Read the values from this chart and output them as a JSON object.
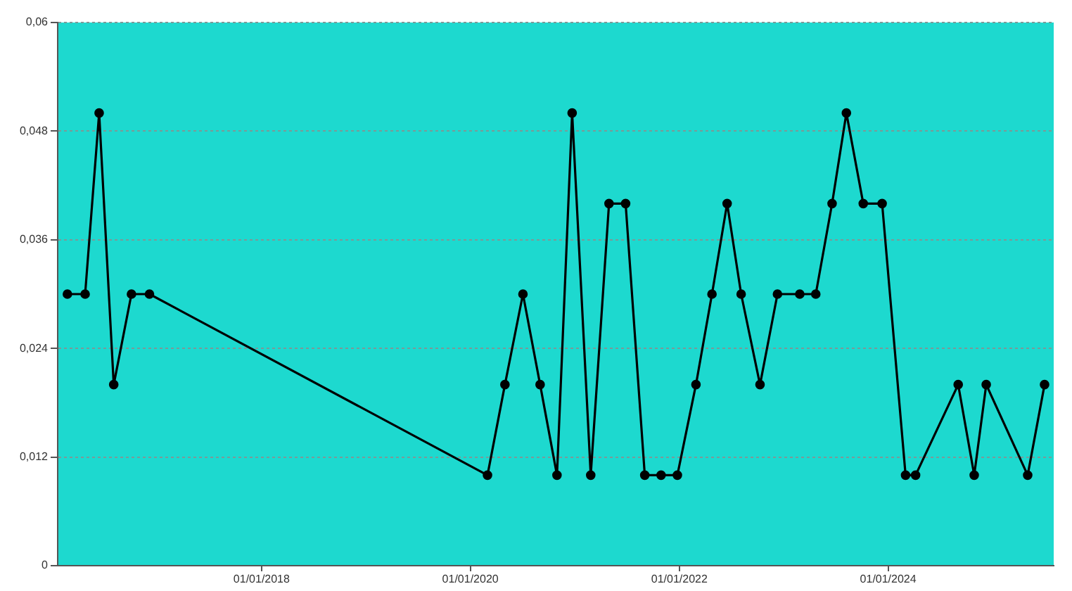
{
  "chart_data": {
    "type": "line",
    "x": [
      "2016-02-22",
      "2016-04-24",
      "2016-06-12",
      "2016-08-02",
      "2016-10-03",
      "2016-12-05",
      "2020-03-01",
      "2020-05-01",
      "2020-07-03",
      "2020-09-01",
      "2020-10-30",
      "2020-12-22",
      "2021-02-25",
      "2021-04-30",
      "2021-06-27",
      "2021-09-02",
      "2021-10-29",
      "2021-12-25",
      "2022-02-28",
      "2022-04-25",
      "2022-06-17",
      "2022-08-05",
      "2022-10-10",
      "2022-12-10",
      "2023-02-26",
      "2023-04-23",
      "2023-06-19",
      "2023-08-08",
      "2023-10-06",
      "2023-12-11",
      "2024-03-02",
      "2024-04-06",
      "2024-09-02",
      "2024-10-28",
      "2024-12-09",
      "2025-05-03",
      "2025-07-01"
    ],
    "values": [
      0.03,
      0.03,
      0.05,
      0.02,
      0.03,
      0.03,
      0.01,
      0.02,
      0.03,
      0.02,
      0.01,
      0.05,
      0.01,
      0.04,
      0.04,
      0.01,
      0.01,
      0.01,
      0.02,
      0.03,
      0.04,
      0.03,
      0.02,
      0.03,
      0.03,
      0.03,
      0.04,
      0.05,
      0.04,
      0.04,
      0.01,
      0.01,
      0.02,
      0.01,
      0.02,
      0.01,
      0.02
    ],
    "color": "#000000",
    "xlim": [
      "2016-01-19",
      "2025-08-02"
    ],
    "xticks": [
      {
        "value": "2018-01-01",
        "label": "01/01/2018"
      },
      {
        "value": "2020-01-01",
        "label": "01/01/2020"
      },
      {
        "value": "2022-01-01",
        "label": "01/01/2022"
      },
      {
        "value": "2024-01-01",
        "label": "01/01/2024"
      }
    ],
    "ylim": [
      0,
      0.06
    ],
    "yticks": [
      0,
      {
        "value": 0.012,
        "label": "0,012"
      },
      {
        "value": 0.024,
        "label": "0,024"
      },
      {
        "value": 0.036,
        "label": "0,036"
      },
      {
        "value": 0.048,
        "label": "0,048"
      },
      {
        "value": 0.06,
        "label": "0,06"
      }
    ],
    "grid": "y",
    "marker": "circle",
    "line_style": "solid"
  }
}
